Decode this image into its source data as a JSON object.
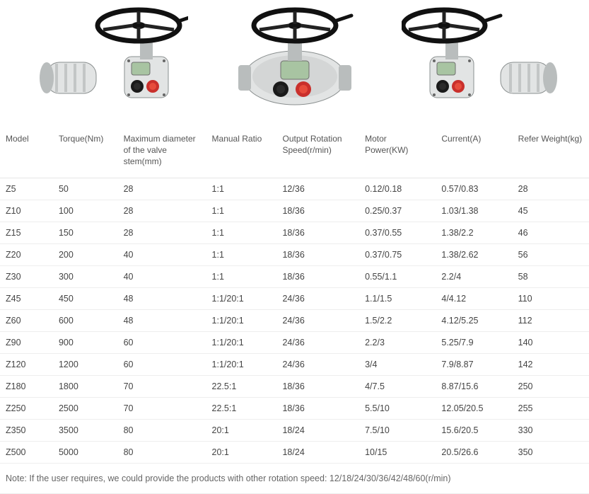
{
  "image_alt": "Electric valve actuator",
  "svg": {
    "handwheel_color": "#111111",
    "spoke_color": "#222222",
    "body_light": "#e2e4e4",
    "body_mid": "#b9bdbd",
    "body_shadow": "#8a8f8f",
    "lens_dark": "#1a1a1a",
    "lens_red": "#c9302c",
    "lens_inner": "#2b2b2b",
    "lens_red_inner": "#e74c3c",
    "display_fill": "#a8c4a2",
    "display_stroke": "#6f6f6f",
    "bolt_color": "#666666"
  },
  "table": {
    "columns": [
      "Model",
      "Torque(Nm)",
      "Maximum diameter of the valve stem(mm)",
      "Manual Ratio",
      "Output Rotation Speed(r/min)",
      "Motor Power(KW)",
      "Current(A)",
      "Refer Weight(kg)"
    ],
    "column_classes": [
      "col-model",
      "col-torque",
      "col-diameter",
      "col-ratio",
      "col-speed",
      "col-power",
      "col-current",
      "col-weight"
    ],
    "rows": [
      [
        "Z5",
        "50",
        "28",
        "1:1",
        "12/36",
        "0.12/0.18",
        "0.57/0.83",
        "28"
      ],
      [
        "Z10",
        "100",
        "28",
        "1:1",
        "18/36",
        "0.25/0.37",
        "1.03/1.38",
        "45"
      ],
      [
        "Z15",
        "150",
        "28",
        "1:1",
        "18/36",
        "0.37/0.55",
        "1.38/2.2",
        "46"
      ],
      [
        "Z20",
        "200",
        "40",
        "1:1",
        "18/36",
        "0.37/0.75",
        "1.38/2.62",
        "56"
      ],
      [
        "Z30",
        "300",
        "40",
        "1:1",
        "18/36",
        "0.55/1.1",
        "2.2/4",
        "58"
      ],
      [
        "Z45",
        "450",
        "48",
        "1:1/20:1",
        "24/36",
        "1.1/1.5",
        "4/4.12",
        "110"
      ],
      [
        "Z60",
        "600",
        "48",
        "1:1/20:1",
        "24/36",
        "1.5/2.2",
        "4.12/5.25",
        "112"
      ],
      [
        "Z90",
        "900",
        "60",
        "1:1/20:1",
        "24/36",
        "2.2/3",
        "5.25/7.9",
        "140"
      ],
      [
        "Z120",
        "1200",
        "60",
        "1:1/20:1",
        "24/36",
        "3/4",
        "7.9/8.87",
        "142"
      ],
      [
        "Z180",
        "1800",
        "70",
        "22.5:1",
        "18/36",
        "4/7.5",
        "8.87/15.6",
        "250"
      ],
      [
        "Z250",
        "2500",
        "70",
        "22.5:1",
        "18/36",
        "5.5/10",
        "12.05/20.5",
        "255"
      ],
      [
        "Z350",
        "3500",
        "80",
        "20:1",
        "18/24",
        "7.5/10",
        "15.6/20.5",
        "330"
      ],
      [
        "Z500",
        "5000",
        "80",
        "20:1",
        "18/24",
        "10/15",
        "20.5/26.6",
        "350"
      ]
    ]
  },
  "note": "Note: If the user requires, we could provide the products with other rotation speed: 12/18/24/30/36/42/48/60(r/min)"
}
